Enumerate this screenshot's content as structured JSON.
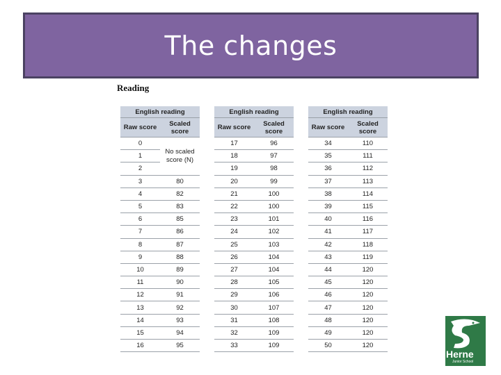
{
  "header": {
    "title": "The changes"
  },
  "subtitle": "Reading",
  "tables": [
    {
      "caption": "English reading",
      "columns": [
        "Raw score",
        "Scaled score"
      ],
      "merged_note": "No scaled score (N)",
      "rows": [
        [
          0
        ],
        [
          1
        ],
        [
          2
        ],
        [
          3,
          80
        ],
        [
          4,
          82
        ],
        [
          5,
          83
        ],
        [
          6,
          85
        ],
        [
          7,
          86
        ],
        [
          8,
          87
        ],
        [
          9,
          88
        ],
        [
          10,
          89
        ],
        [
          11,
          90
        ],
        [
          12,
          91
        ],
        [
          13,
          92
        ],
        [
          14,
          93
        ],
        [
          15,
          94
        ],
        [
          16,
          95
        ]
      ]
    },
    {
      "caption": "English reading",
      "columns": [
        "Raw score",
        "Scaled score"
      ],
      "rows": [
        [
          17,
          96
        ],
        [
          18,
          97
        ],
        [
          19,
          98
        ],
        [
          20,
          99
        ],
        [
          21,
          100
        ],
        [
          22,
          100
        ],
        [
          23,
          101
        ],
        [
          24,
          102
        ],
        [
          25,
          103
        ],
        [
          26,
          104
        ],
        [
          27,
          104
        ],
        [
          28,
          105
        ],
        [
          29,
          106
        ],
        [
          30,
          107
        ],
        [
          31,
          108
        ],
        [
          32,
          109
        ],
        [
          33,
          109
        ]
      ]
    },
    {
      "caption": "English reading",
      "columns": [
        "Raw score",
        "Scaled score"
      ],
      "rows": [
        [
          34,
          110
        ],
        [
          35,
          111
        ],
        [
          36,
          112
        ],
        [
          37,
          113
        ],
        [
          38,
          114
        ],
        [
          39,
          115
        ],
        [
          40,
          116
        ],
        [
          41,
          117
        ],
        [
          42,
          118
        ],
        [
          43,
          119
        ],
        [
          44,
          120
        ],
        [
          45,
          120
        ],
        [
          46,
          120
        ],
        [
          47,
          120
        ],
        [
          48,
          120
        ],
        [
          49,
          120
        ],
        [
          50,
          120
        ]
      ]
    }
  ],
  "logo": {
    "name": "Herne",
    "tagline": "Junior School"
  }
}
